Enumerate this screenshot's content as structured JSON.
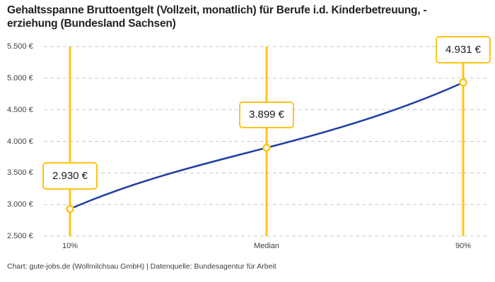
{
  "title": {
    "line1": "Gehaltsspanne Bruttoentgelt (Vollzeit, monatlich) für Berufe i.d. Kinderbetreuung, -",
    "line2": "erziehung (Bundesland Sachsen)"
  },
  "footer": {
    "text": "Chart: gute-jobs.de (Wollmilchsau GmbH) | Datenquelle: Bundesagentur für Arbeit"
  },
  "chart_data": {
    "type": "line",
    "title": "Gehaltsspanne Bruttoentgelt (Vollzeit, monatlich) für Berufe i.d. Kinderbetreuung, -erziehung (Bundesland Sachsen)",
    "categories": [
      "10%",
      "Median",
      "90%"
    ],
    "values": [
      2930,
      3899,
      4931
    ],
    "value_labels": [
      "2.930 €",
      "3.899 €",
      "4.931 €"
    ],
    "ylim": [
      2500,
      5500
    ],
    "y_ticks": [
      {
        "value": 5500,
        "label": "5.500 €"
      },
      {
        "value": 5000,
        "label": "5.000 €"
      },
      {
        "value": 4500,
        "label": "4.500 €"
      },
      {
        "value": 4000,
        "label": "4.000 €"
      },
      {
        "value": 3500,
        "label": "3.500 €"
      },
      {
        "value": 3000,
        "label": "3.000 €"
      },
      {
        "value": 2500,
        "label": "2.500 €"
      }
    ],
    "xlabel": "",
    "ylabel": "",
    "grid": "horizontal-dashed",
    "legend": "none",
    "colors": {
      "line": "#1e3da4",
      "marker_stroke": "#ffc417",
      "marker_fill": "#ffffff",
      "grid": "#c9c9c9",
      "tick_text": "#3d3d3d",
      "title_text": "#222222",
      "box_border": "#ffc417"
    }
  }
}
